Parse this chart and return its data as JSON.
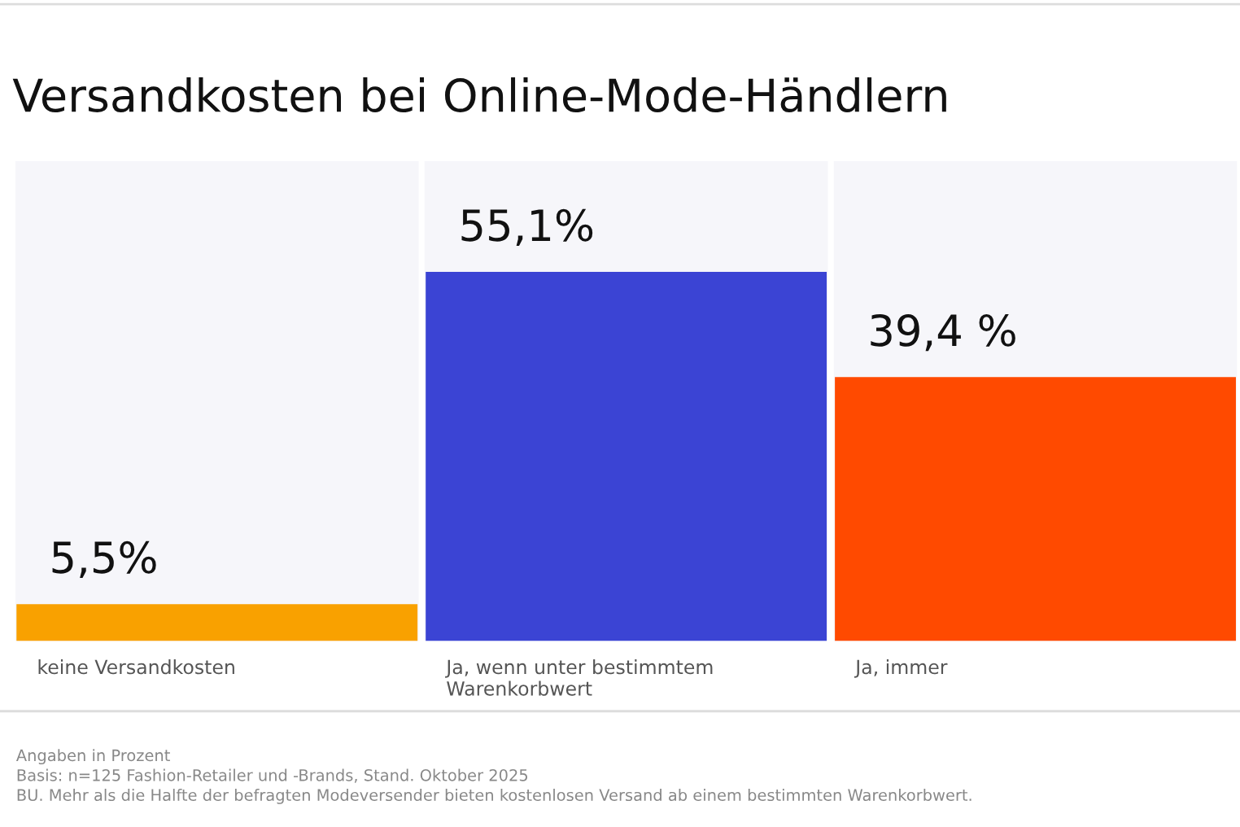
{
  "chart_data": {
    "type": "bar",
    "title": "Versandkosten bei Online-Mode-Händlern",
    "categories": [
      "keine Versandkosten",
      "Ja, wenn unter bestimmtem\nWarenkorbwert",
      "Ja, immer"
    ],
    "values": [
      5.5,
      55.1,
      39.4
    ],
    "colors": [
      "#f9a100",
      "#3b44d4",
      "#ff4a00"
    ],
    "value_labels": [
      "5,5%",
      "55,1%",
      "39,4 %"
    ],
    "annotations": [
      "Angaben in Prozent",
      "Basis: n=125 Fashion-Retailer und -Brands, Stand. Oktober 2025",
      "BU. Mehr als die Halfte der befragten Modeversender bieten kostenlosen Versand ab einem bestimmten Warenkorbwert."
    ],
    "legend": false
  }
}
